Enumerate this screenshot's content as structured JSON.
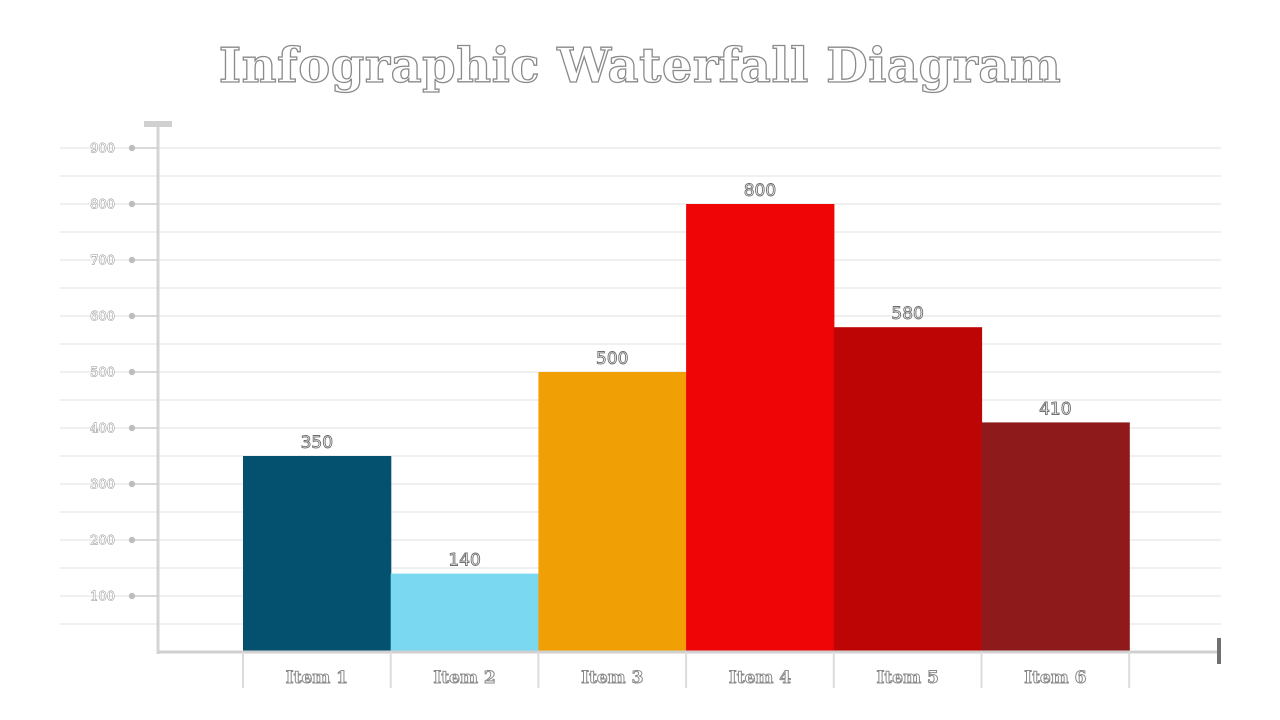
{
  "chart_data": {
    "type": "bar",
    "title": "Infographic Waterfall Diagram",
    "categories": [
      "Item 1",
      "Item 2",
      "Item 3",
      "Item 4",
      "Item 5",
      "Item 6"
    ],
    "values": [
      350,
      140,
      500,
      800,
      580,
      410
    ],
    "value_labels": [
      "350",
      "140",
      "500",
      "800",
      "580",
      "410"
    ],
    "colors": [
      "#04516f",
      "#7ad8f1",
      "#f09f05",
      "#ef0505",
      "#bd0505",
      "#8f1a1c"
    ],
    "yticks": [
      100,
      200,
      300,
      400,
      500,
      600,
      700,
      800,
      900
    ],
    "ytick_labels": [
      "100",
      "200",
      "300",
      "400",
      "500",
      "600",
      "700",
      "800",
      "900"
    ],
    "ylim": [
      0,
      900
    ],
    "xlabel": "",
    "ylabel": "",
    "grid": true,
    "legend": "none"
  }
}
